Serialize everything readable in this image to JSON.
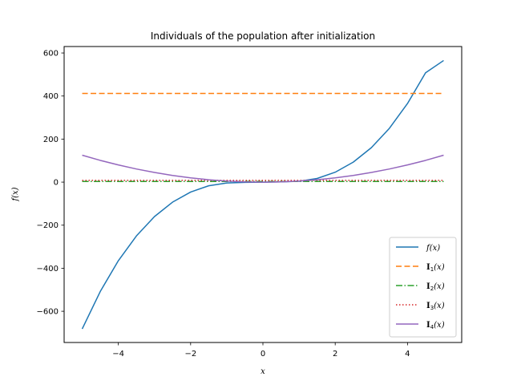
{
  "chart_data": {
    "type": "line",
    "title": "Individuals of the population after initialization",
    "xlabel": "x",
    "ylabel": "f(x)",
    "xlim": [
      -5.5,
      5.5
    ],
    "ylim": [
      -745,
      630
    ],
    "xticks": [
      -4,
      -2,
      0,
      2,
      4
    ],
    "yticks": [
      -600,
      -400,
      -200,
      0,
      200,
      400,
      600
    ],
    "xtick_labels": [
      "−4",
      "−2",
      "0",
      "2",
      "4"
    ],
    "ytick_labels": [
      "−600",
      "−400",
      "−200",
      "0",
      "200",
      "400",
      "600"
    ],
    "legend_position": "lower-right",
    "x": [
      -5,
      -4.5,
      -4,
      -3.5,
      -3,
      -2.5,
      -2,
      -1.5,
      -1,
      -0.5,
      0,
      0.5,
      1,
      1.5,
      2,
      2.5,
      3,
      3.5,
      4,
      4.5,
      5
    ],
    "series": [
      {
        "name": "f(x)",
        "sub": "",
        "color": "#1f77b4",
        "dash": "",
        "values": [
          -682,
          -508,
          -365,
          -250,
          -160,
          -93,
          -46,
          -17,
          -4,
          -1,
          0,
          1,
          4,
          17,
          46,
          93,
          160,
          250,
          365,
          508,
          565
        ]
      },
      {
        "name": "I",
        "sub": "1",
        "color": "#ff7f0e",
        "dash": "7,3.5",
        "values": [
          412,
          412,
          412,
          412,
          412,
          412,
          412,
          412,
          412,
          412,
          412,
          412,
          412,
          412,
          412,
          412,
          412,
          412,
          412,
          412,
          412
        ]
      },
      {
        "name": "I",
        "sub": "2",
        "color": "#2ca02c",
        "dash": "8,2.5,1.5,2.5",
        "values": [
          3,
          3,
          3,
          3,
          3,
          3,
          3,
          3,
          3,
          3,
          3,
          3,
          3,
          3,
          3,
          3,
          3,
          3,
          3,
          3,
          3
        ]
      },
      {
        "name": "I",
        "sub": "3",
        "color": "#d62728",
        "dash": "1.5,2.5",
        "values": [
          8,
          8,
          8,
          8,
          8,
          8,
          8,
          8,
          8,
          8,
          8,
          8,
          8,
          8,
          8,
          8,
          8,
          8,
          8,
          8,
          8
        ]
      },
      {
        "name": "I",
        "sub": "4",
        "color": "#9467bd",
        "dash": "",
        "values": [
          125,
          101,
          80,
          61,
          45,
          31,
          20,
          11,
          5,
          1,
          0,
          1,
          5,
          11,
          20,
          31,
          45,
          61,
          80,
          101,
          125
        ]
      }
    ]
  }
}
